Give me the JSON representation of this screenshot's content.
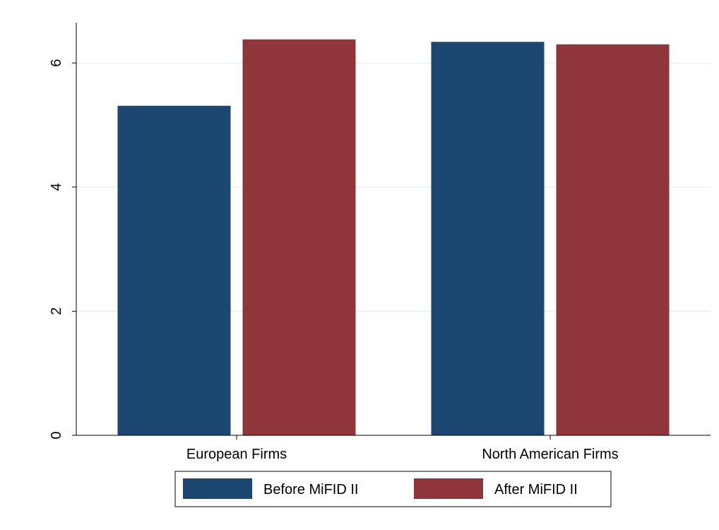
{
  "chart_data": {
    "type": "bar",
    "title": "",
    "xlabel": "",
    "ylabel": "",
    "categories": [
      "European Firms",
      "North American Firms"
    ],
    "series": [
      {
        "name": "Before MiFID II",
        "values": [
          5.31,
          6.34
        ],
        "color": "#1c4770"
      },
      {
        "name": "After MiFID II",
        "values": [
          6.38,
          6.3
        ],
        "color": "#90353b"
      }
    ],
    "ylim": [
      0,
      6.65
    ],
    "yticks": [
      "0",
      "2",
      "4",
      "6"
    ],
    "grid": true,
    "legend_position": "bottom-center"
  }
}
